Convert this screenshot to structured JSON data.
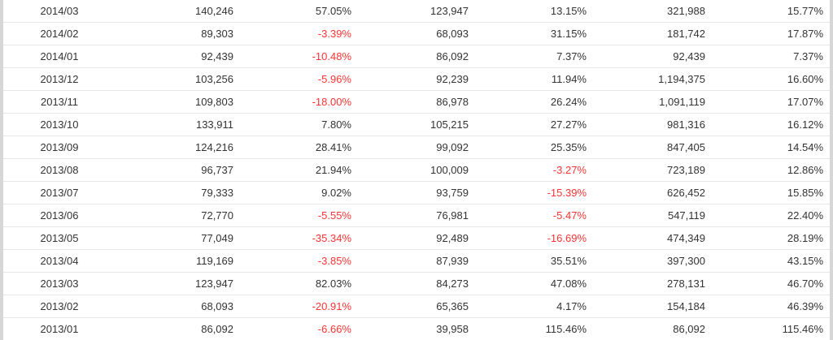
{
  "colors": {
    "text": "#333333",
    "negative": "#ff3333",
    "row_border": "#e6e6e6",
    "frame_border": "#d6d6d6",
    "background": "#ffffff"
  },
  "rows": [
    {
      "period": "2014/03",
      "v1": "140,246",
      "p1": "57.05%",
      "v2": "123,947",
      "p2": "13.15%",
      "v3": "321,988",
      "p3": "15.77%"
    },
    {
      "period": "2014/02",
      "v1": "89,303",
      "p1": "-3.39%",
      "v2": "68,093",
      "p2": "31.15%",
      "v3": "181,742",
      "p3": "17.87%"
    },
    {
      "period": "2014/01",
      "v1": "92,439",
      "p1": "-10.48%",
      "v2": "86,092",
      "p2": "7.37%",
      "v3": "92,439",
      "p3": "7.37%"
    },
    {
      "period": "2013/12",
      "v1": "103,256",
      "p1": "-5.96%",
      "v2": "92,239",
      "p2": "11.94%",
      "v3": "1,194,375",
      "p3": "16.60%"
    },
    {
      "period": "2013/11",
      "v1": "109,803",
      "p1": "-18.00%",
      "v2": "86,978",
      "p2": "26.24%",
      "v3": "1,091,119",
      "p3": "17.07%"
    },
    {
      "period": "2013/10",
      "v1": "133,911",
      "p1": "7.80%",
      "v2": "105,215",
      "p2": "27.27%",
      "v3": "981,316",
      "p3": "16.12%"
    },
    {
      "period": "2013/09",
      "v1": "124,216",
      "p1": "28.41%",
      "v2": "99,092",
      "p2": "25.35%",
      "v3": "847,405",
      "p3": "14.54%"
    },
    {
      "period": "2013/08",
      "v1": "96,737",
      "p1": "21.94%",
      "v2": "100,009",
      "p2": "-3.27%",
      "v3": "723,189",
      "p3": "12.86%"
    },
    {
      "period": "2013/07",
      "v1": "79,333",
      "p1": "9.02%",
      "v2": "93,759",
      "p2": "-15.39%",
      "v3": "626,452",
      "p3": "15.85%"
    },
    {
      "period": "2013/06",
      "v1": "72,770",
      "p1": "-5.55%",
      "v2": "76,981",
      "p2": "-5.47%",
      "v3": "547,119",
      "p3": "22.40%"
    },
    {
      "period": "2013/05",
      "v1": "77,049",
      "p1": "-35.34%",
      "v2": "92,489",
      "p2": "-16.69%",
      "v3": "474,349",
      "p3": "28.19%"
    },
    {
      "period": "2013/04",
      "v1": "119,169",
      "p1": "-3.85%",
      "v2": "87,939",
      "p2": "35.51%",
      "v3": "397,300",
      "p3": "43.15%"
    },
    {
      "period": "2013/03",
      "v1": "123,947",
      "p1": "82.03%",
      "v2": "84,273",
      "p2": "47.08%",
      "v3": "278,131",
      "p3": "46.70%"
    },
    {
      "period": "2013/02",
      "v1": "68,093",
      "p1": "-20.91%",
      "v2": "65,365",
      "p2": "4.17%",
      "v3": "154,184",
      "p3": "46.39%"
    },
    {
      "period": "2013/01",
      "v1": "86,092",
      "p1": "-6.66%",
      "v2": "39,958",
      "p2": "115.46%",
      "v3": "86,092",
      "p3": "115.46%"
    }
  ]
}
